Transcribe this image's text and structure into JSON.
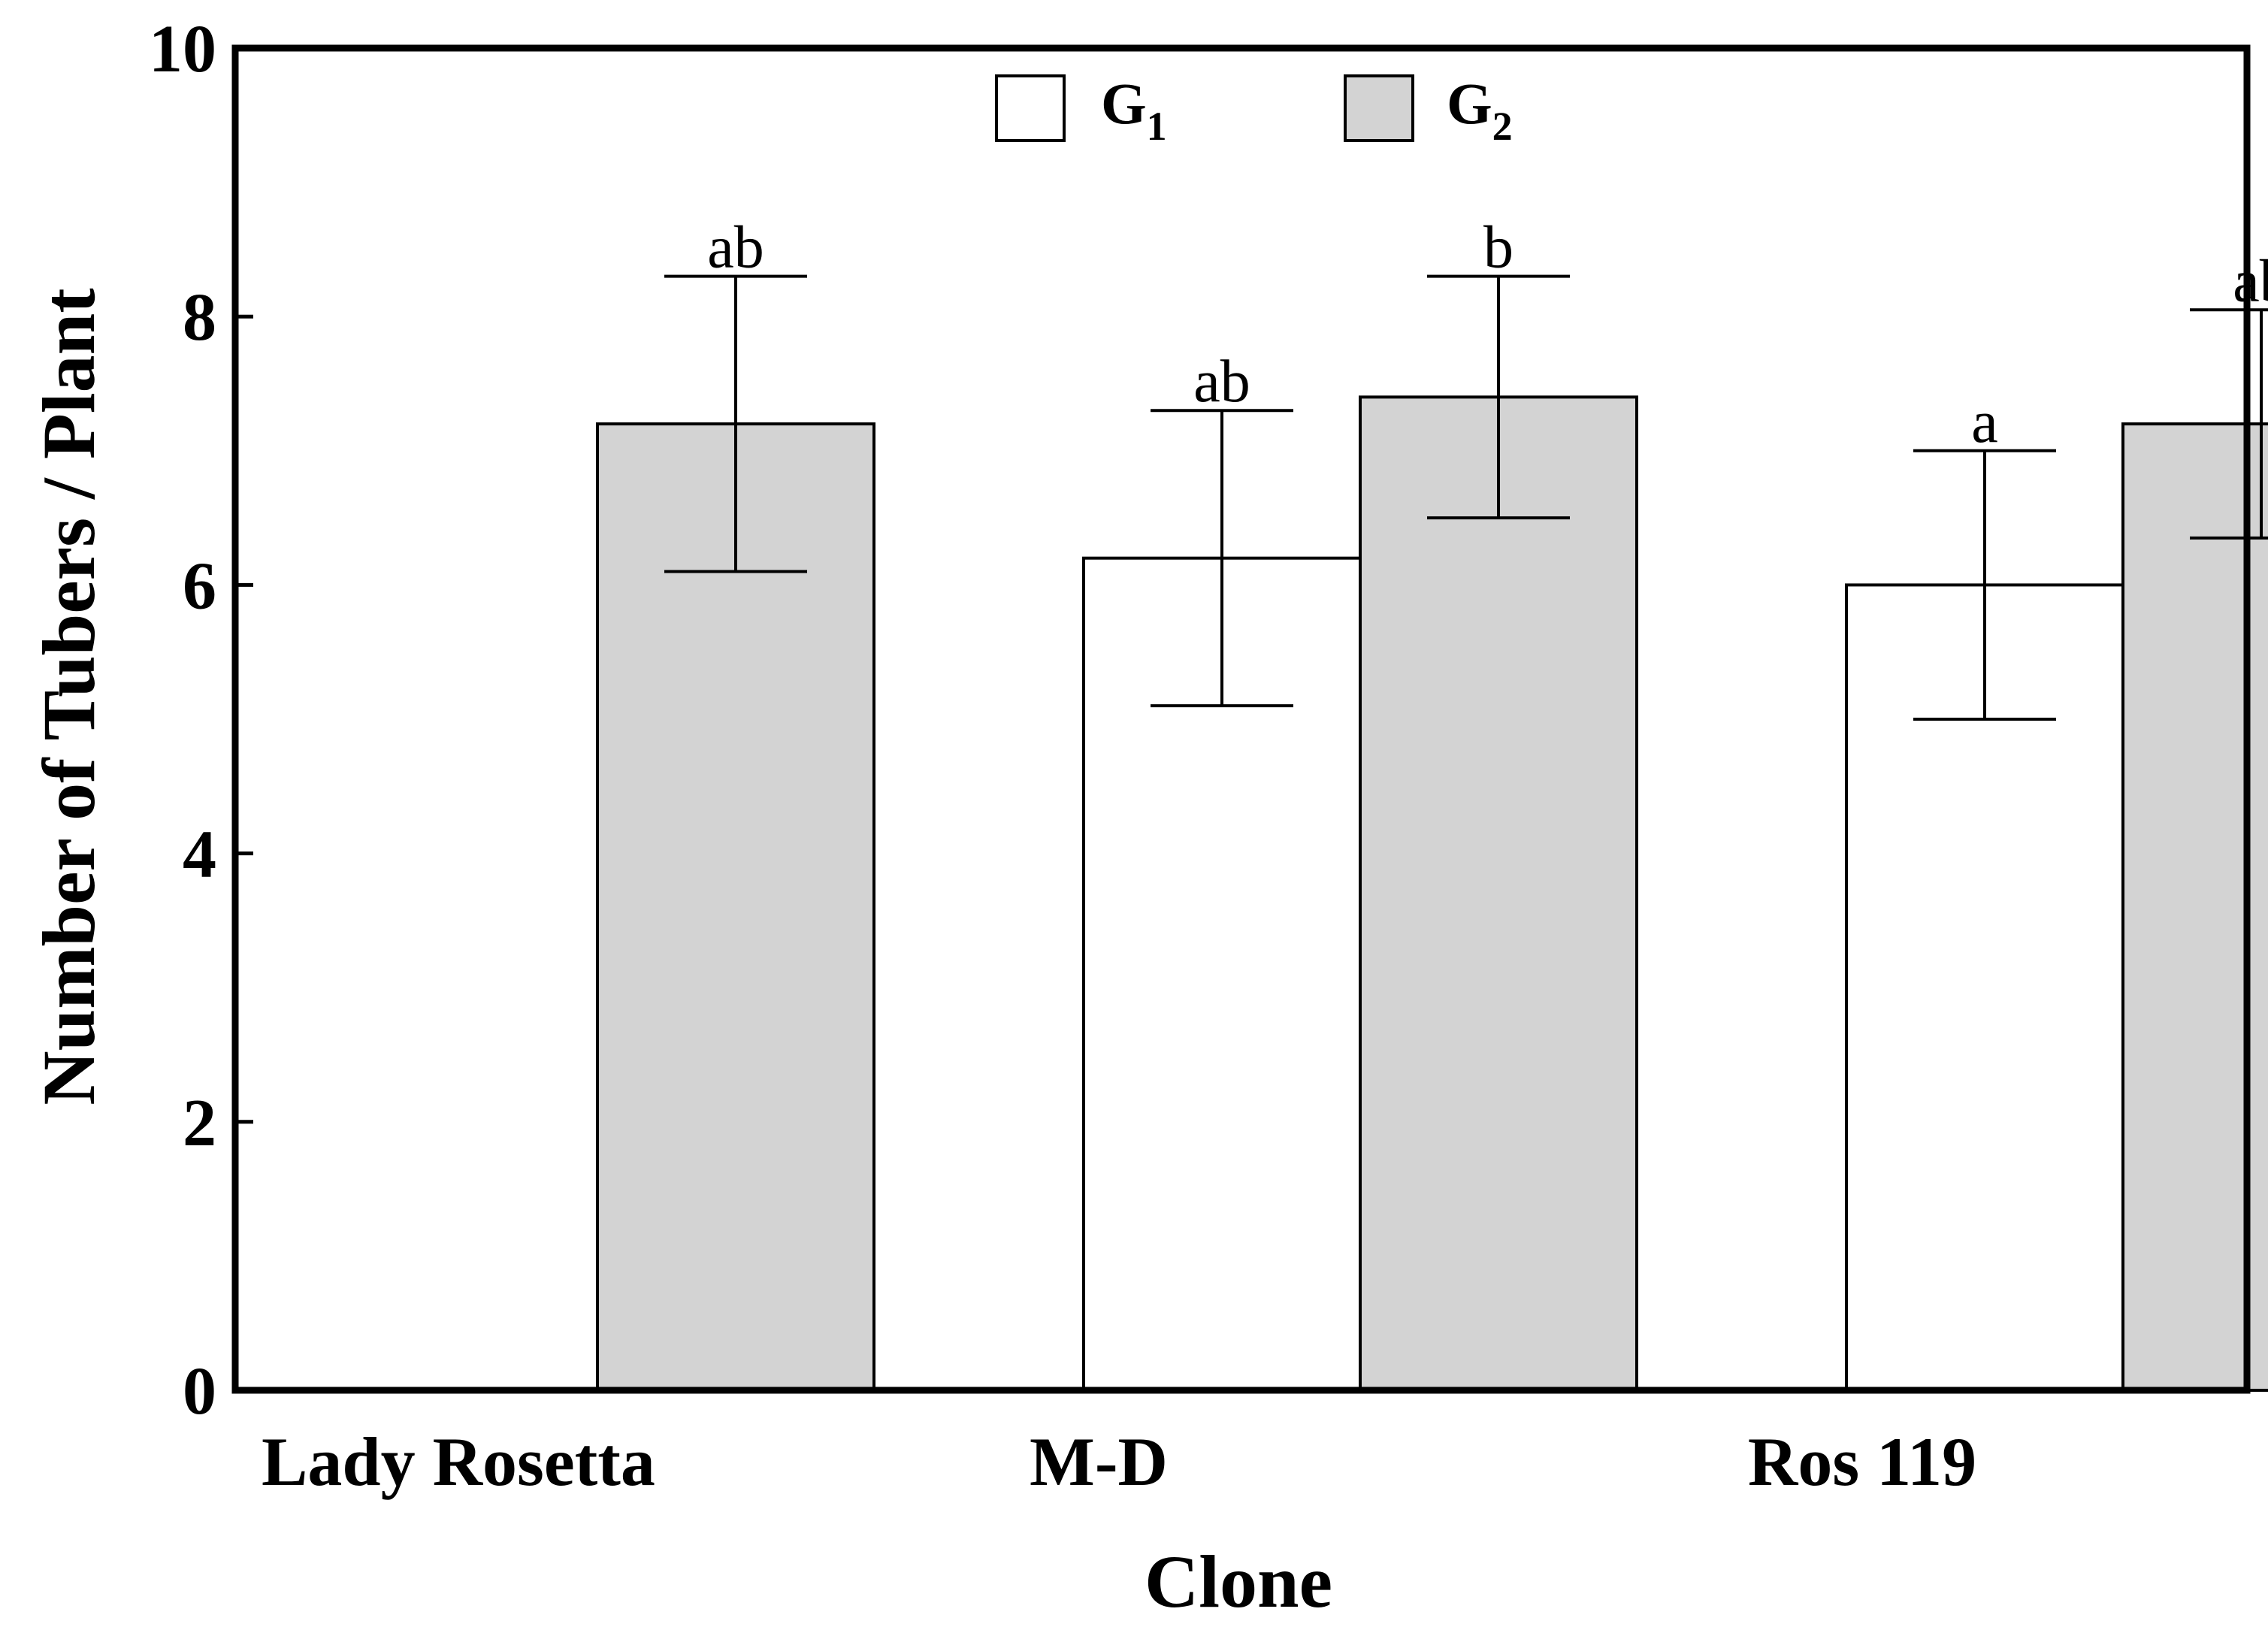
{
  "chart_data": {
    "type": "bar",
    "title": "",
    "xlabel": "Clone",
    "ylabel": "Number of Tubers / Plant",
    "ylim": [
      0,
      10
    ],
    "yticks": [
      0,
      2,
      4,
      6,
      8,
      10
    ],
    "ytick_labels": [
      "0",
      "2",
      "4",
      "6",
      "8",
      "10"
    ],
    "grid": false,
    "legend_position": "top-center",
    "categories": [
      "Lady Rosetta",
      "M-D",
      "Ros 119"
    ],
    "series": [
      {
        "name": "G1",
        "legend_main": "G",
        "legend_sub": "1",
        "color": "#ffffff",
        "values": [
          null,
          6.2,
          6.0
        ],
        "err_upper": [
          null,
          7.3,
          7.0
        ],
        "err_lower": [
          null,
          5.1,
          5.0
        ],
        "sig_labels": [
          null,
          "ab",
          "a"
        ]
      },
      {
        "name": "G2",
        "legend_main": "G",
        "legend_sub": "2",
        "color": "#d3d3d3",
        "values": [
          7.2,
          7.4,
          7.2
        ],
        "err_upper": [
          8.3,
          8.3,
          8.05
        ],
        "err_lower": [
          6.1,
          6.5,
          6.35
        ],
        "sig_labels": [
          "ab",
          "b",
          "ab"
        ]
      }
    ]
  }
}
